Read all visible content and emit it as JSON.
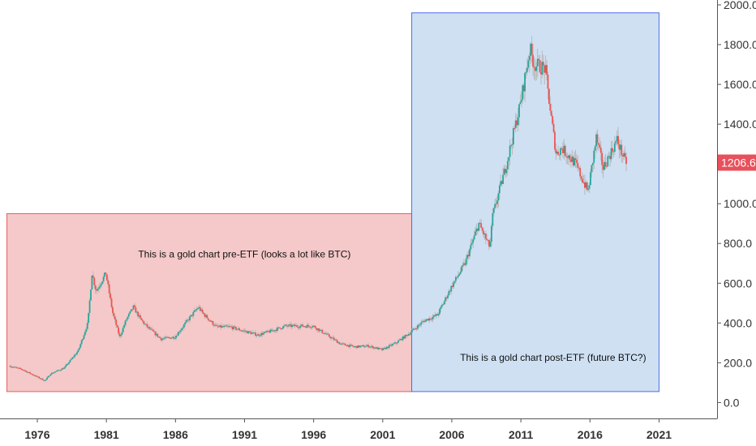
{
  "chart_data": {
    "type": "candlestick",
    "title": "",
    "xlabel": "",
    "ylabel": "",
    "xlim": [
      1973.3,
      2025.2
    ],
    "ylim": [
      -80,
      2000
    ],
    "x_ticks": [
      "1976",
      "1981",
      "1986",
      "1991",
      "1996",
      "2001",
      "2006",
      "2011",
      "2016",
      "2021"
    ],
    "y_ticks": [
      "0.0",
      "200.0",
      "400.0",
      "600.0",
      "800.0",
      "1000.0",
      "1200.0",
      "1400.0",
      "1600.0",
      "1800.0",
      "2000.0"
    ],
    "last_price": "1206.6",
    "last_price_color": "#e8505b",
    "up_color": "#26a69a",
    "down_color": "#ef5350",
    "price_path": [
      [
        1974.0,
        185
      ],
      [
        1975.0,
        165
      ],
      [
        1976.0,
        130
      ],
      [
        1976.6,
        110
      ],
      [
        1977.0,
        145
      ],
      [
        1978.0,
        175
      ],
      [
        1979.0,
        260
      ],
      [
        1979.7,
        400
      ],
      [
        1980.0,
        650
      ],
      [
        1980.3,
        560
      ],
      [
        1981.0,
        650
      ],
      [
        1981.5,
        450
      ],
      [
        1982.0,
        330
      ],
      [
        1982.5,
        420
      ],
      [
        1983.0,
        480
      ],
      [
        1983.5,
        420
      ],
      [
        1984.0,
        380
      ],
      [
        1985.0,
        320
      ],
      [
        1986.0,
        330
      ],
      [
        1987.0,
        420
      ],
      [
        1987.7,
        480
      ],
      [
        1988.0,
        450
      ],
      [
        1989.0,
        380
      ],
      [
        1990.0,
        380
      ],
      [
        1991.0,
        360
      ],
      [
        1992.0,
        340
      ],
      [
        1993.0,
        360
      ],
      [
        1994.0,
        385
      ],
      [
        1995.0,
        385
      ],
      [
        1996.0,
        385
      ],
      [
        1997.0,
        340
      ],
      [
        1998.0,
        295
      ],
      [
        1999.0,
        280
      ],
      [
        2000.0,
        285
      ],
      [
        2001.0,
        265
      ],
      [
        2002.0,
        300
      ],
      [
        2003.0,
        350
      ],
      [
        2004.0,
        410
      ],
      [
        2005.0,
        440
      ],
      [
        2006.0,
        580
      ],
      [
        2007.0,
        700
      ],
      [
        2008.0,
        900
      ],
      [
        2008.8,
        780
      ],
      [
        2009.0,
        940
      ],
      [
        2010.0,
        1200
      ],
      [
        2011.0,
        1500
      ],
      [
        2011.7,
        1780
      ],
      [
        2012.0,
        1700
      ],
      [
        2012.8,
        1680
      ],
      [
        2013.3,
        1400
      ],
      [
        2013.6,
        1250
      ],
      [
        2014.0,
        1280
      ],
      [
        2015.0,
        1200
      ],
      [
        2015.9,
        1060
      ],
      [
        2016.5,
        1330
      ],
      [
        2017.0,
        1180
      ],
      [
        2018.0,
        1320
      ],
      [
        2018.6,
        1210
      ]
    ],
    "regions": [
      {
        "x_start": 1973.8,
        "x_end": 2003.1,
        "y_top": 950,
        "y_bottom": 55,
        "fill": "#f5c9c9",
        "stroke": "#e85c5c"
      },
      {
        "x_start": 2003.1,
        "x_end": 2021.0,
        "y_top": 1960,
        "y_bottom": 55,
        "fill": "#cfe0f3",
        "stroke": "#4d6ee8"
      }
    ],
    "annotations": [
      {
        "text": "This is a gold chart pre-ETF (looks a lot like BTC)",
        "x": 1983.3,
        "y": 730
      },
      {
        "text": "This is a gold chart post-ETF (future BTC?)",
        "x": 2006.6,
        "y": 210
      }
    ]
  }
}
